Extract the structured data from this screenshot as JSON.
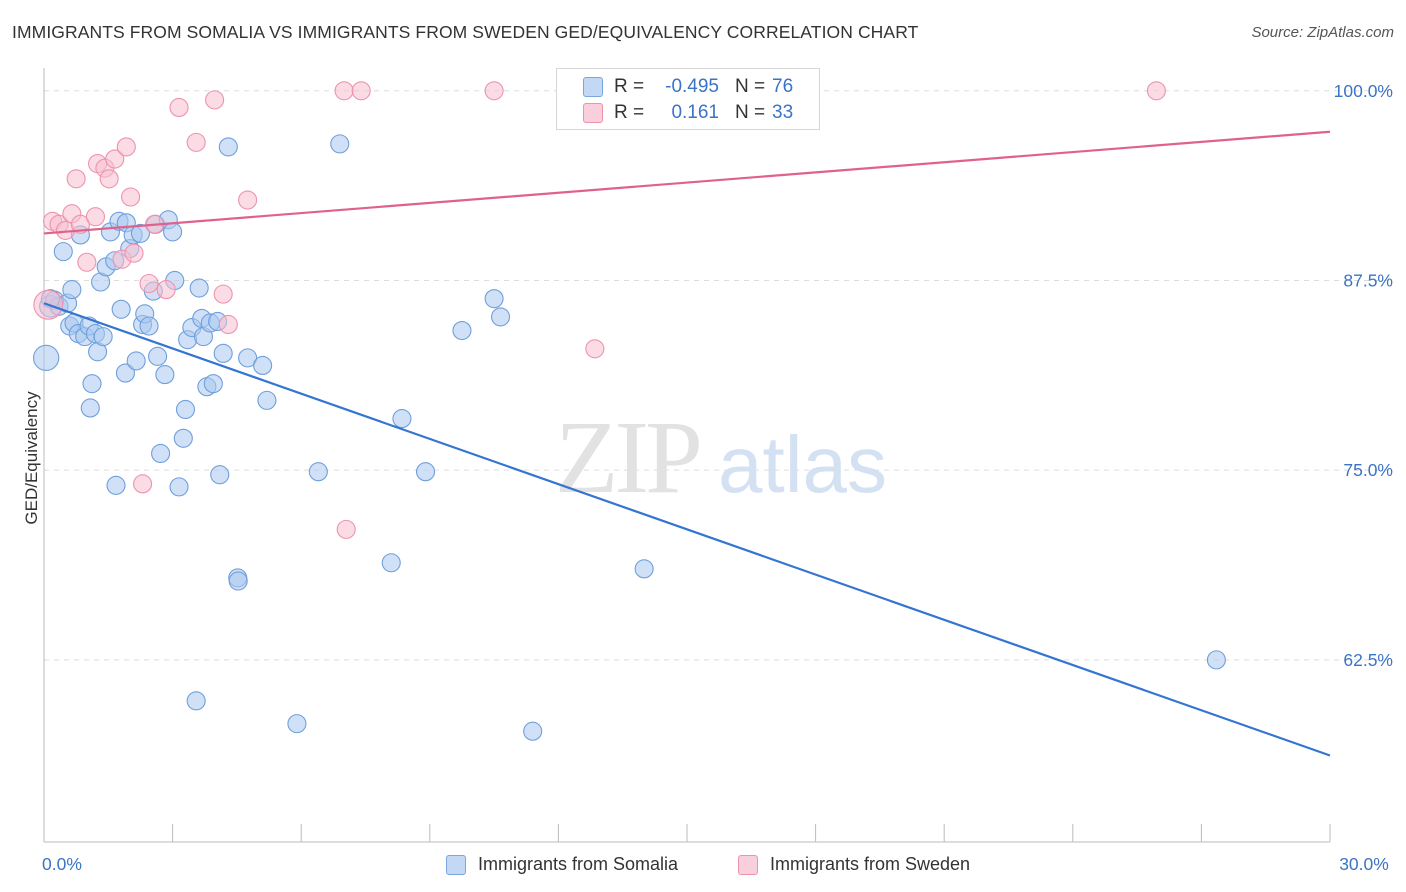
{
  "title": "IMMIGRANTS FROM SOMALIA VS IMMIGRANTS FROM SWEDEN GED/EQUIVALENCY CORRELATION CHART",
  "source": "Source: ZipAtlas.com",
  "watermark": {
    "zip": "ZIP",
    "atlas": "atlas"
  },
  "colors": {
    "somalia_fill": "#a9c8f0",
    "somalia_stroke": "#6f9fdc",
    "somalia_line": "#3475d1",
    "sweden_fill": "#f7bfd0",
    "sweden_stroke": "#ee92b0",
    "sweden_line": "#e0628c",
    "tick_label": "#3b73c6",
    "grid": "#dddddd"
  },
  "stats": {
    "r_label": "R =",
    "n_label": "N =",
    "somalia": {
      "r": "-0.495",
      "n": "76"
    },
    "sweden": {
      "r": "0.161",
      "n": "33"
    }
  },
  "legend": {
    "somalia": "Immigrants from Somalia",
    "sweden": "Immigrants from Sweden"
  },
  "chart_data": {
    "type": "scatter",
    "title": "IMMIGRANTS FROM SOMALIA VS IMMIGRANTS FROM SWEDEN GED/EQUIVALENCY CORRELATION CHART",
    "xlabel": "",
    "ylabel": "GED/Equivalency",
    "xlim": [
      0,
      30
    ],
    "ylim": [
      50.5,
      101.5
    ],
    "x_tick_labels": [
      {
        "value": 0,
        "label": "0.0%"
      },
      {
        "value": 30,
        "label": "30.0%"
      }
    ],
    "x_minor_ticks": [
      0,
      3,
      6,
      9,
      12,
      15,
      18,
      21,
      24,
      27,
      30
    ],
    "y_ticks": [
      {
        "value": 100,
        "label": "100.0%"
      },
      {
        "value": 87.5,
        "label": "87.5%"
      },
      {
        "value": 75,
        "label": "75.0%"
      },
      {
        "value": 62.5,
        "label": "62.5%"
      }
    ],
    "grid": true,
    "legend_position": "bottom",
    "series": [
      {
        "name": "Immigrants from Somalia",
        "color": "#a9c8f0",
        "trend": {
          "x": [
            0,
            30
          ],
          "y": [
            86.0,
            56.2
          ]
        },
        "points": [
          {
            "x": 0.05,
            "y": 82.4,
            "s": 1.4
          },
          {
            "x": 0.15,
            "y": 85.8,
            "s": 1.2
          },
          {
            "x": 0.25,
            "y": 86.2,
            "s": 1.0
          },
          {
            "x": 0.35,
            "y": 85.8,
            "s": 1.0
          },
          {
            "x": 0.45,
            "y": 89.4,
            "s": 1.0
          },
          {
            "x": 0.55,
            "y": 86.0,
            "s": 1.0
          },
          {
            "x": 0.6,
            "y": 84.5,
            "s": 1.0
          },
          {
            "x": 0.65,
            "y": 86.9,
            "s": 1.0
          },
          {
            "x": 0.7,
            "y": 84.7,
            "s": 1.0
          },
          {
            "x": 0.8,
            "y": 84.0,
            "s": 1.0
          },
          {
            "x": 0.85,
            "y": 90.5,
            "s": 1.0
          },
          {
            "x": 0.95,
            "y": 83.8,
            "s": 1.0
          },
          {
            "x": 1.05,
            "y": 84.5,
            "s": 1.0
          },
          {
            "x": 1.08,
            "y": 79.1,
            "s": 1.0
          },
          {
            "x": 1.12,
            "y": 80.7,
            "s": 1.0
          },
          {
            "x": 1.2,
            "y": 84.0,
            "s": 1.0
          },
          {
            "x": 1.25,
            "y": 82.8,
            "s": 1.0
          },
          {
            "x": 1.32,
            "y": 87.4,
            "s": 1.0
          },
          {
            "x": 1.38,
            "y": 83.8,
            "s": 1.0
          },
          {
            "x": 1.45,
            "y": 88.4,
            "s": 1.0
          },
          {
            "x": 1.55,
            "y": 90.7,
            "s": 1.0
          },
          {
            "x": 1.65,
            "y": 88.8,
            "s": 1.0
          },
          {
            "x": 1.68,
            "y": 74.0,
            "s": 1.0
          },
          {
            "x": 1.75,
            "y": 91.4,
            "s": 1.0
          },
          {
            "x": 1.8,
            "y": 85.6,
            "s": 1.0
          },
          {
            "x": 1.9,
            "y": 81.4,
            "s": 1.0
          },
          {
            "x": 1.92,
            "y": 91.3,
            "s": 1.0
          },
          {
            "x": 2.0,
            "y": 89.6,
            "s": 1.0
          },
          {
            "x": 2.08,
            "y": 90.5,
            "s": 1.0
          },
          {
            "x": 2.15,
            "y": 82.2,
            "s": 1.0
          },
          {
            "x": 2.25,
            "y": 90.6,
            "s": 1.0
          },
          {
            "x": 2.3,
            "y": 84.6,
            "s": 1.0
          },
          {
            "x": 2.35,
            "y": 85.3,
            "s": 1.0
          },
          {
            "x": 2.45,
            "y": 84.5,
            "s": 1.0
          },
          {
            "x": 2.55,
            "y": 86.8,
            "s": 1.0
          },
          {
            "x": 2.6,
            "y": 91.2,
            "s": 1.0
          },
          {
            "x": 2.65,
            "y": 82.5,
            "s": 1.0
          },
          {
            "x": 2.72,
            "y": 76.1,
            "s": 1.0
          },
          {
            "x": 2.82,
            "y": 81.3,
            "s": 1.0
          },
          {
            "x": 2.9,
            "y": 91.5,
            "s": 1.0
          },
          {
            "x": 3.0,
            "y": 90.7,
            "s": 1.0
          },
          {
            "x": 3.05,
            "y": 87.5,
            "s": 1.0
          },
          {
            "x": 3.15,
            "y": 73.9,
            "s": 1.0
          },
          {
            "x": 3.25,
            "y": 77.1,
            "s": 1.0
          },
          {
            "x": 3.3,
            "y": 79.0,
            "s": 1.0
          },
          {
            "x": 3.35,
            "y": 83.6,
            "s": 1.0
          },
          {
            "x": 3.45,
            "y": 84.4,
            "s": 1.0
          },
          {
            "x": 3.55,
            "y": 59.8,
            "s": 1.0
          },
          {
            "x": 3.62,
            "y": 87.0,
            "s": 1.0
          },
          {
            "x": 3.68,
            "y": 85.0,
            "s": 1.0
          },
          {
            "x": 3.72,
            "y": 83.8,
            "s": 1.0
          },
          {
            "x": 3.8,
            "y": 80.5,
            "s": 1.0
          },
          {
            "x": 3.88,
            "y": 84.7,
            "s": 1.0
          },
          {
            "x": 3.95,
            "y": 80.7,
            "s": 1.0
          },
          {
            "x": 4.05,
            "y": 84.8,
            "s": 1.0
          },
          {
            "x": 4.1,
            "y": 74.7,
            "s": 1.0
          },
          {
            "x": 4.18,
            "y": 82.7,
            "s": 1.0
          },
          {
            "x": 4.3,
            "y": 96.3,
            "s": 1.0
          },
          {
            "x": 4.52,
            "y": 67.9,
            "s": 1.0
          },
          {
            "x": 4.53,
            "y": 67.7,
            "s": 1.0
          },
          {
            "x": 4.75,
            "y": 82.4,
            "s": 1.0
          },
          {
            "x": 5.1,
            "y": 81.9,
            "s": 1.0
          },
          {
            "x": 5.2,
            "y": 79.6,
            "s": 1.0
          },
          {
            "x": 5.9,
            "y": 58.3,
            "s": 1.0
          },
          {
            "x": 6.4,
            "y": 74.9,
            "s": 1.0
          },
          {
            "x": 6.9,
            "y": 96.5,
            "s": 1.0
          },
          {
            "x": 8.1,
            "y": 68.9,
            "s": 1.0
          },
          {
            "x": 8.35,
            "y": 78.4,
            "s": 1.0
          },
          {
            "x": 8.9,
            "y": 74.9,
            "s": 1.0
          },
          {
            "x": 9.75,
            "y": 84.2,
            "s": 1.0
          },
          {
            "x": 10.5,
            "y": 86.3,
            "s": 1.0
          },
          {
            "x": 10.65,
            "y": 85.1,
            "s": 1.0
          },
          {
            "x": 11.4,
            "y": 57.8,
            "s": 1.0
          },
          {
            "x": 14.0,
            "y": 68.5,
            "s": 1.0
          },
          {
            "x": 27.35,
            "y": 62.5,
            "s": 1.0
          },
          {
            "x": 0.15,
            "y": 86.3,
            "s": 1.0
          }
        ]
      },
      {
        "name": "Immigrants from Sweden",
        "color": "#f7bfd0",
        "trend": {
          "x": [
            0,
            30
          ],
          "y": [
            90.6,
            97.3
          ]
        },
        "points": [
          {
            "x": 0.1,
            "y": 85.9,
            "s": 1.6
          },
          {
            "x": 0.2,
            "y": 91.4,
            "s": 1.0
          },
          {
            "x": 0.35,
            "y": 91.2,
            "s": 1.0
          },
          {
            "x": 0.5,
            "y": 90.8,
            "s": 1.0
          },
          {
            "x": 0.65,
            "y": 91.9,
            "s": 1.0
          },
          {
            "x": 0.75,
            "y": 94.2,
            "s": 1.0
          },
          {
            "x": 0.85,
            "y": 91.2,
            "s": 1.0
          },
          {
            "x": 1.0,
            "y": 88.7,
            "s": 1.0
          },
          {
            "x": 1.2,
            "y": 91.7,
            "s": 1.0
          },
          {
            "x": 1.25,
            "y": 95.2,
            "s": 1.0
          },
          {
            "x": 1.42,
            "y": 94.9,
            "s": 1.0
          },
          {
            "x": 1.52,
            "y": 94.2,
            "s": 1.0
          },
          {
            "x": 1.65,
            "y": 95.5,
            "s": 1.0
          },
          {
            "x": 1.82,
            "y": 88.9,
            "s": 1.0
          },
          {
            "x": 1.92,
            "y": 96.3,
            "s": 1.0
          },
          {
            "x": 2.02,
            "y": 93.0,
            "s": 1.0
          },
          {
            "x": 2.1,
            "y": 89.3,
            "s": 1.0
          },
          {
            "x": 2.3,
            "y": 74.1,
            "s": 1.0
          },
          {
            "x": 2.45,
            "y": 87.3,
            "s": 1.0
          },
          {
            "x": 2.58,
            "y": 91.2,
            "s": 1.0
          },
          {
            "x": 2.85,
            "y": 86.9,
            "s": 1.0
          },
          {
            "x": 3.15,
            "y": 98.9,
            "s": 1.0
          },
          {
            "x": 3.55,
            "y": 96.6,
            "s": 1.0
          },
          {
            "x": 3.98,
            "y": 99.4,
            "s": 1.0
          },
          {
            "x": 4.18,
            "y": 86.6,
            "s": 1.0
          },
          {
            "x": 4.3,
            "y": 84.6,
            "s": 1.0
          },
          {
            "x": 4.75,
            "y": 92.8,
            "s": 1.0
          },
          {
            "x": 7.0,
            "y": 100.0,
            "s": 1.0
          },
          {
            "x": 7.05,
            "y": 71.1,
            "s": 1.0
          },
          {
            "x": 7.4,
            "y": 100.0,
            "s": 1.0
          },
          {
            "x": 10.5,
            "y": 100.0,
            "s": 1.0
          },
          {
            "x": 12.85,
            "y": 83.0,
            "s": 1.0
          },
          {
            "x": 25.95,
            "y": 100.0,
            "s": 1.0
          }
        ]
      }
    ]
  }
}
